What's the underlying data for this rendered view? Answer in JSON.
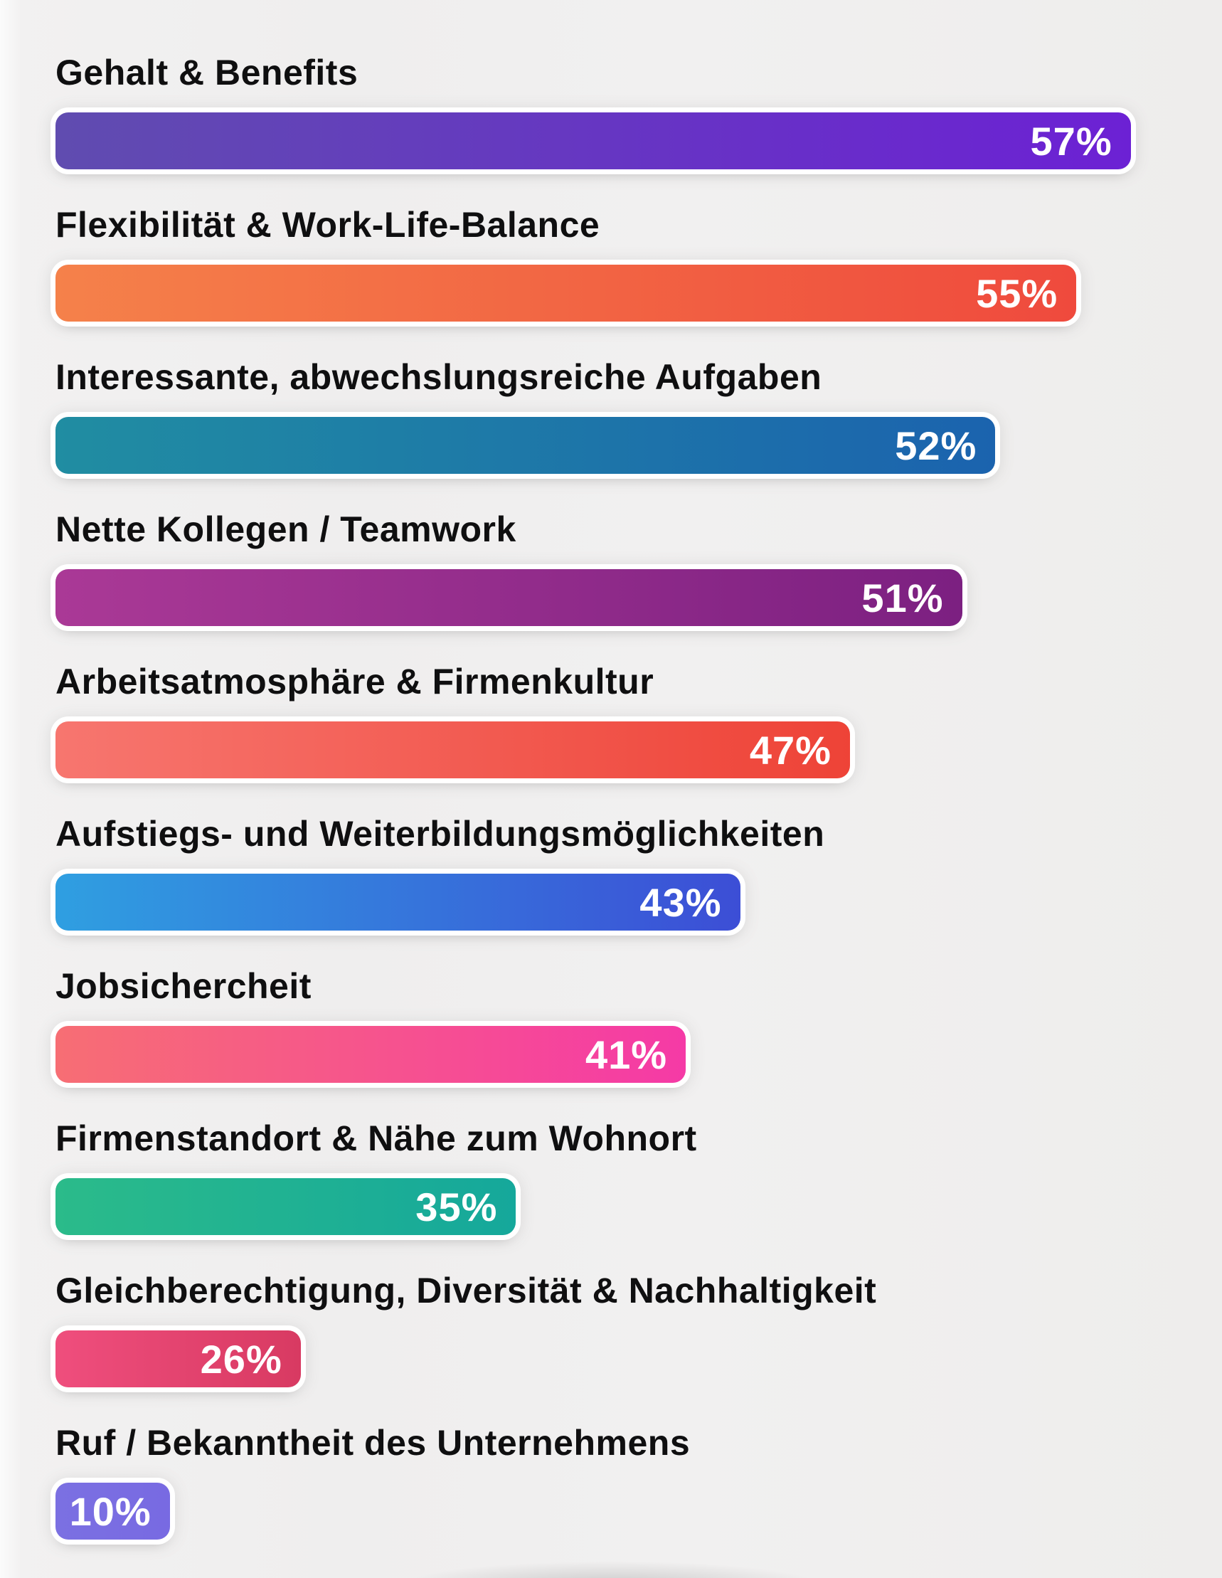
{
  "page": {
    "background_color": "#f0efef",
    "label_text_color": "#0f0f10",
    "value_text_color": "#ffffff"
  },
  "chart_data": {
    "type": "bar",
    "orientation": "horizontal",
    "title": "",
    "xlabel": "",
    "ylabel": "",
    "unit": "%",
    "grid": false,
    "axes_visible": false,
    "legend": "none",
    "value_label_position": "inside-end",
    "categories": [
      "Gehalt & Benefits",
      "Flexibilität & Work-Life-Balance",
      "Interessante, abwechslungsreiche Aufgaben",
      "Nette Kollegen / Teamwork",
      "Arbeitsatmosphäre & Firmenkultur",
      "Aufstiegs- und Weiterbildungsmöglichkeiten",
      "Jobsichercheit",
      "Firmenstandort & Nähe zum Wohnort",
      "Gleichberechtigung, Diversität & Nachhaltigkeit",
      "Ruf / Bekanntheit des Unternehmens"
    ],
    "values": [
      57,
      55,
      52,
      51,
      47,
      43,
      41,
      35,
      26,
      10
    ],
    "value_labels": [
      "57%",
      "55%",
      "52%",
      "51%",
      "47%",
      "43%",
      "41%",
      "35%",
      "26%",
      "10%"
    ],
    "bar_gradients": [
      [
        "#604cb0",
        "#6c21d4"
      ],
      [
        "#f5814a",
        "#ef4a3d"
      ],
      [
        "#208da2",
        "#1b63ae"
      ],
      [
        "#aa3996",
        "#7c2081"
      ],
      [
        "#f7766f",
        "#ee4337"
      ],
      [
        "#2f9fe1",
        "#3c4ed6"
      ],
      [
        "#f76e74",
        "#f53aa6"
      ],
      [
        "#2bbb8a",
        "#15a89b"
      ],
      [
        "#ef4e7d",
        "#d83a62"
      ],
      [
        "#7b70e2",
        "#786ae2"
      ]
    ],
    "bar_width_pct_of_track": [
      96.9,
      92.0,
      84.7,
      81.7,
      71.6,
      61.7,
      56.8,
      41.5,
      22.1,
      10.3
    ]
  }
}
